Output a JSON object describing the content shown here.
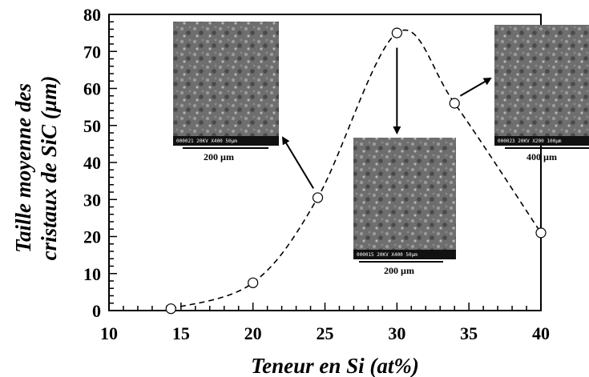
{
  "chart_data": {
    "type": "line",
    "title": "",
    "xlabel": "Teneur en Si (at%)",
    "ylabel_line1": "Taille moyenne des",
    "ylabel_line2": "cristaux de SiC (µm)",
    "xlim": [
      10,
      40
    ],
    "ylim": [
      0,
      80
    ],
    "xticks": [
      "10",
      "15",
      "20",
      "25",
      "30",
      "35",
      "40"
    ],
    "yticks": [
      "0",
      "10",
      "20",
      "30",
      "40",
      "50",
      "60",
      "70",
      "80"
    ],
    "grid": false,
    "line_style": "dashed",
    "marker": "open-circle",
    "series": [
      {
        "x": [
          14.3,
          20.0,
          24.5,
          30.0,
          34.0,
          40.0
        ],
        "y": [
          0.5,
          7.5,
          30.5,
          75.0,
          56.0,
          21.0
        ]
      }
    ],
    "insets": [
      {
        "name": "sem-image-14-at",
        "scale_label": "200 µm",
        "caption": "000021 20KV X400 50µm",
        "points_to": [
          24.5,
          30.5
        ]
      },
      {
        "name": "sem-image-30-at",
        "scale_label": "200 µm",
        "caption": "000015 20KV X400 50µm",
        "points_to": [
          30.0,
          75.0
        ]
      },
      {
        "name": "sem-image-34-at",
        "scale_label": "400 µm",
        "caption": "000023 20KV X200 100µm",
        "points_to": [
          34.0,
          56.0
        ]
      }
    ]
  }
}
